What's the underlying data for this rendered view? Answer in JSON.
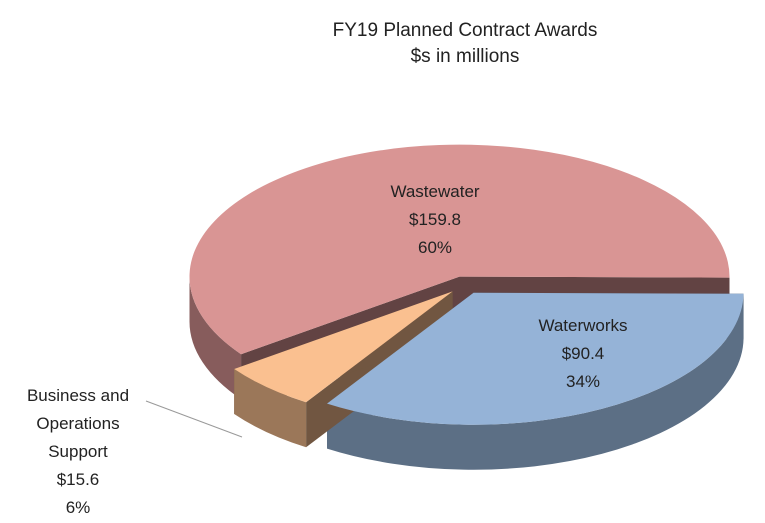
{
  "chart_data": {
    "type": "pie3d",
    "title": "FY19 Planned Contract Awards",
    "subtitle": "$s in millions",
    "categories": [
      "Wastewater",
      "Waterworks",
      "Business and Operations Support"
    ],
    "values": [
      159.8,
      90.4,
      15.6
    ],
    "value_labels": [
      "$159.8",
      "$90.4",
      "$15.6"
    ],
    "percentages": [
      60,
      34,
      6
    ],
    "percentage_labels": [
      "60%",
      "34%",
      "6%"
    ],
    "colors": [
      "#d99594",
      "#95b3d7",
      "#fac090"
    ]
  }
}
